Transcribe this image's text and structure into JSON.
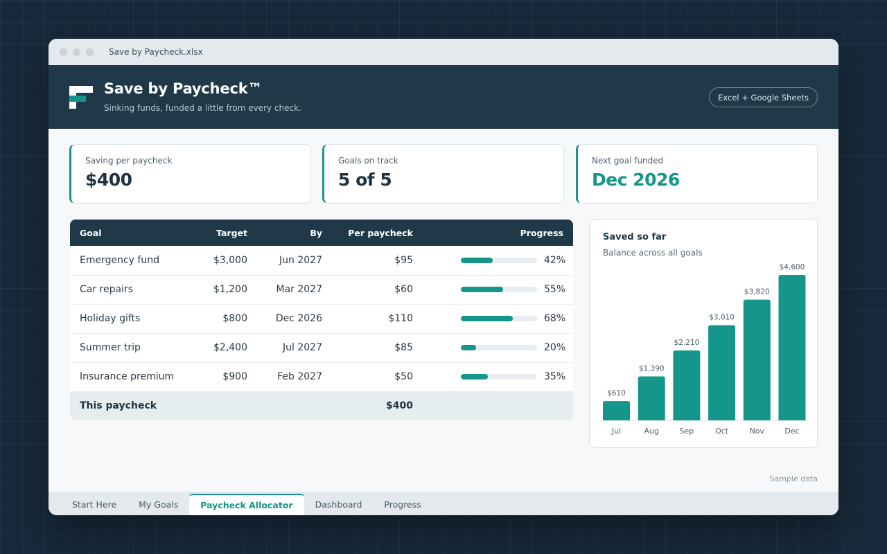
{
  "window": {
    "title": "Save by Paycheck.xlsx"
  },
  "header": {
    "title": "Save by Paycheck™",
    "subtitle": "Sinking funds, funded a little from every check.",
    "platform_label": "Excel + Google Sheets"
  },
  "kpis": [
    {
      "label": "Saving per paycheck",
      "value": "$400"
    },
    {
      "label": "Goals on track",
      "value": "5 of 5"
    },
    {
      "label": "Next goal funded",
      "value": "Dec 2026",
      "accent": "#14968a"
    }
  ],
  "table": {
    "columns": [
      "Goal",
      "Target",
      "By",
      "Per paycheck",
      "Progress"
    ],
    "rows": [
      {
        "goal": "Emergency fund",
        "target": "$3,000",
        "by": "Jun 2027",
        "per": "$95",
        "progress": 42,
        "pct": "42%"
      },
      {
        "goal": "Car repairs",
        "target": "$1,200",
        "by": "Mar 2027",
        "per": "$60",
        "progress": 55,
        "pct": "55%"
      },
      {
        "goal": "Holiday gifts",
        "target": "$800",
        "by": "Dec 2026",
        "per": "$110",
        "progress": 68,
        "pct": "68%"
      },
      {
        "goal": "Summer trip",
        "target": "$2,400",
        "by": "Jul 2027",
        "per": "$85",
        "progress": 20,
        "pct": "20%"
      },
      {
        "goal": "Insurance premium",
        "target": "$900",
        "by": "Feb 2027",
        "per": "$50",
        "progress": 35,
        "pct": "35%"
      }
    ],
    "total": {
      "label": "This paycheck",
      "value": "$400"
    }
  },
  "chart": {
    "title": "Saved so far",
    "subtitle": "Balance across all goals"
  },
  "chart_data": {
    "type": "bar",
    "title": "Saved so far",
    "subtitle": "Balance across all goals",
    "categories": [
      "Jul",
      "Aug",
      "Sep",
      "Oct",
      "Nov",
      "Dec"
    ],
    "values": [
      610,
      1390,
      2210,
      3010,
      3820,
      4600
    ],
    "labels": [
      "$610",
      "$1,390",
      "$2,210",
      "$3,010",
      "$3,820",
      "$4,600"
    ],
    "ylim": [
      0,
      4600
    ],
    "grid": false,
    "color": "#14968a"
  },
  "footer_note": "Sample data",
  "tabs": [
    {
      "label": "Start Here",
      "active": false
    },
    {
      "label": "My Goals",
      "active": false
    },
    {
      "label": "Paycheck Allocator",
      "active": true
    },
    {
      "label": "Dashboard",
      "active": false
    },
    {
      "label": "Progress",
      "active": false
    }
  ],
  "colors": {
    "accent": "#14968a",
    "header": "#1f3948",
    "background": "#17293a"
  }
}
